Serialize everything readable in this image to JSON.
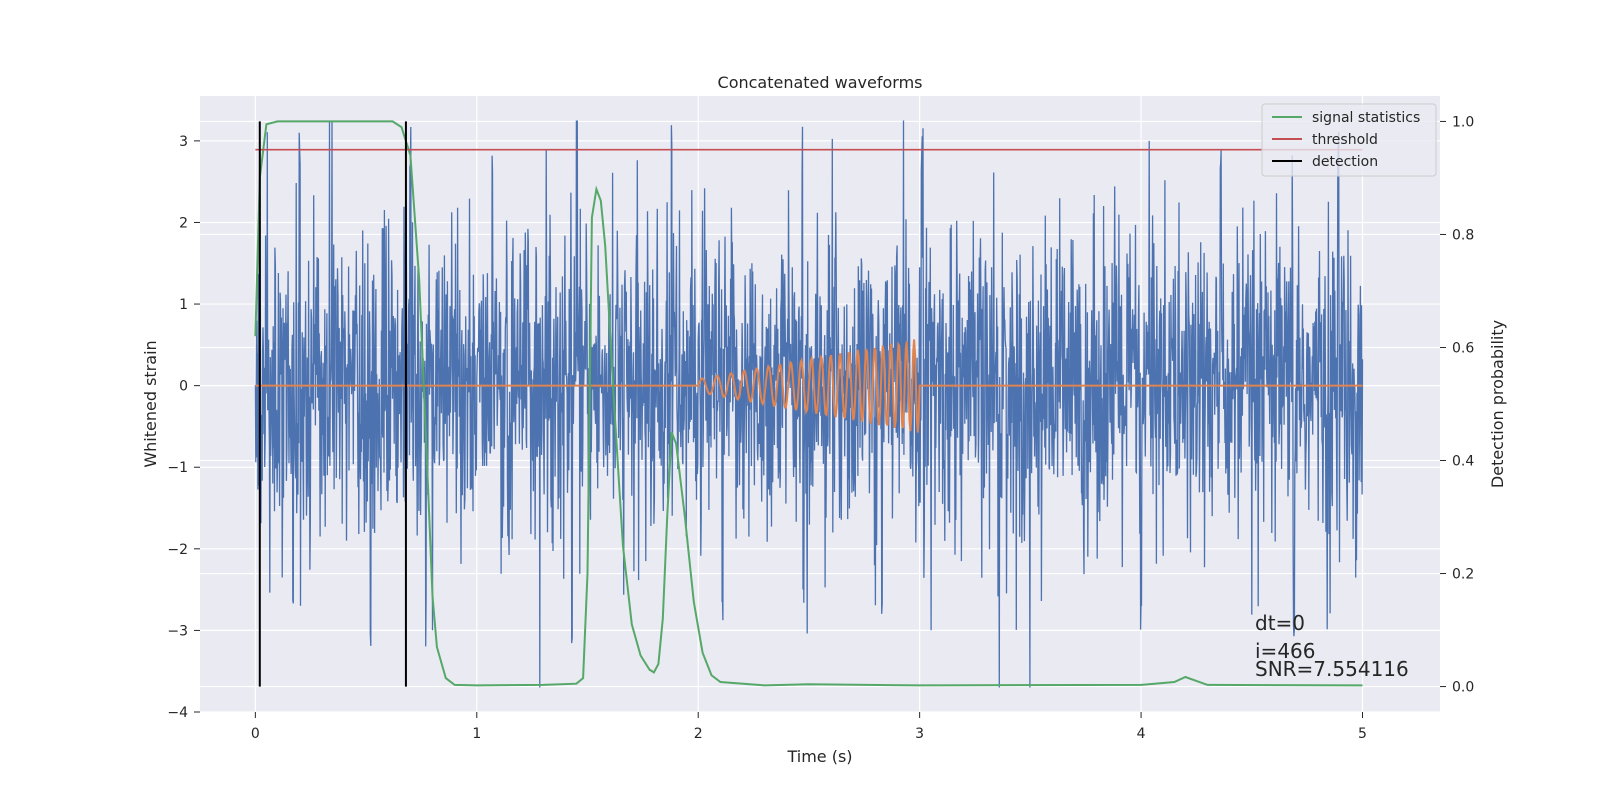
{
  "chart_data": {
    "type": "line",
    "title": "Concatenated waveforms",
    "xlabel": "Time (s)",
    "ylabel": "Whitened strain",
    "y2label": "Detection probability",
    "xlim": [
      -0.25,
      5.35
    ],
    "ylim": [
      -4.0,
      3.55
    ],
    "y2lim": [
      -0.045,
      1.045
    ],
    "xticks": [
      0,
      1,
      2,
      3,
      4,
      5
    ],
    "xtick_labels": [
      "0",
      "1",
      "2",
      "3",
      "4",
      "5"
    ],
    "yticks": [
      -4,
      -3,
      -2,
      -1,
      0,
      1,
      2,
      3
    ],
    "ytick_labels": [
      "−4",
      "−3",
      "−2",
      "−1",
      "0",
      "1",
      "2",
      "3"
    ],
    "y2ticks": [
      0.0,
      0.2,
      0.4,
      0.6,
      0.8,
      1.0
    ],
    "y2tick_labels": [
      "0.0",
      "0.2",
      "0.4",
      "0.6",
      "0.8",
      "1.0"
    ],
    "grid": true,
    "legend_position": "top-right",
    "background": "#eaeaf2",
    "series": [
      {
        "kind": "whitened-strain",
        "color": "#4c72b0",
        "x_range": [
          0,
          5
        ],
        "amplitude_core": 0.9,
        "max_value": 3.25,
        "min_value": -3.7,
        "peak_times": [
          0.02,
          0.17,
          0.2,
          0.52,
          0.7,
          0.77,
          1.07,
          1.43,
          1.88,
          2.11,
          2.47,
          2.83,
          3.01,
          4.0,
          4.36,
          4.69,
          4.89
        ]
      },
      {
        "kind": "injected-signal",
        "color": "#dd8452",
        "x_range": [
          0,
          5
        ],
        "active_range": [
          2.0,
          3.0
        ],
        "start_amplitude": 0.08,
        "end_amplitude": 0.58
      },
      {
        "name": "signal statistics",
        "color": "#55a868",
        "axis": "right",
        "x": [
          0.0,
          0.02,
          0.05,
          0.1,
          0.3,
          0.62,
          0.66,
          0.7,
          0.74,
          0.78,
          0.8,
          0.82,
          0.86,
          0.9,
          1.0,
          1.3,
          1.45,
          1.48,
          1.5,
          1.52,
          1.54,
          1.56,
          1.58,
          1.62,
          1.66,
          1.7,
          1.74,
          1.78,
          1.8,
          1.82,
          1.84,
          1.86,
          1.88,
          1.9,
          1.94,
          1.98,
          2.02,
          2.06,
          2.1,
          2.3,
          2.5,
          3.0,
          4.0,
          4.15,
          4.2,
          4.25,
          4.3,
          5.0
        ],
        "y": [
          0.62,
          0.9,
          0.995,
          1.0,
          1.0,
          1.0,
          0.99,
          0.94,
          0.72,
          0.35,
          0.16,
          0.07,
          0.015,
          0.003,
          0.002,
          0.003,
          0.005,
          0.015,
          0.2,
          0.83,
          0.88,
          0.86,
          0.78,
          0.5,
          0.25,
          0.11,
          0.055,
          0.03,
          0.025,
          0.04,
          0.12,
          0.3,
          0.45,
          0.43,
          0.3,
          0.15,
          0.06,
          0.02,
          0.008,
          0.002,
          0.004,
          0.002,
          0.003,
          0.008,
          0.017,
          0.01,
          0.003,
          0.002
        ]
      },
      {
        "name": "threshold",
        "color": "#c44e52",
        "axis": "right",
        "x": [
          0,
          5
        ],
        "y": [
          0.95,
          0.95
        ]
      },
      {
        "name": "detection",
        "color": "#000000",
        "axis": "right",
        "x": [
          0.02,
          0.68
        ],
        "y_range": [
          0.0,
          1.0
        ]
      }
    ],
    "legend": [
      {
        "label": "signal statistics",
        "color": "#55a868"
      },
      {
        "label": "threshold",
        "color": "#c44e52"
      },
      {
        "label": "detection",
        "color": "#000000"
      }
    ],
    "annotations": [
      "dt=0",
      "i=466",
      "SNR=7.554116"
    ]
  }
}
